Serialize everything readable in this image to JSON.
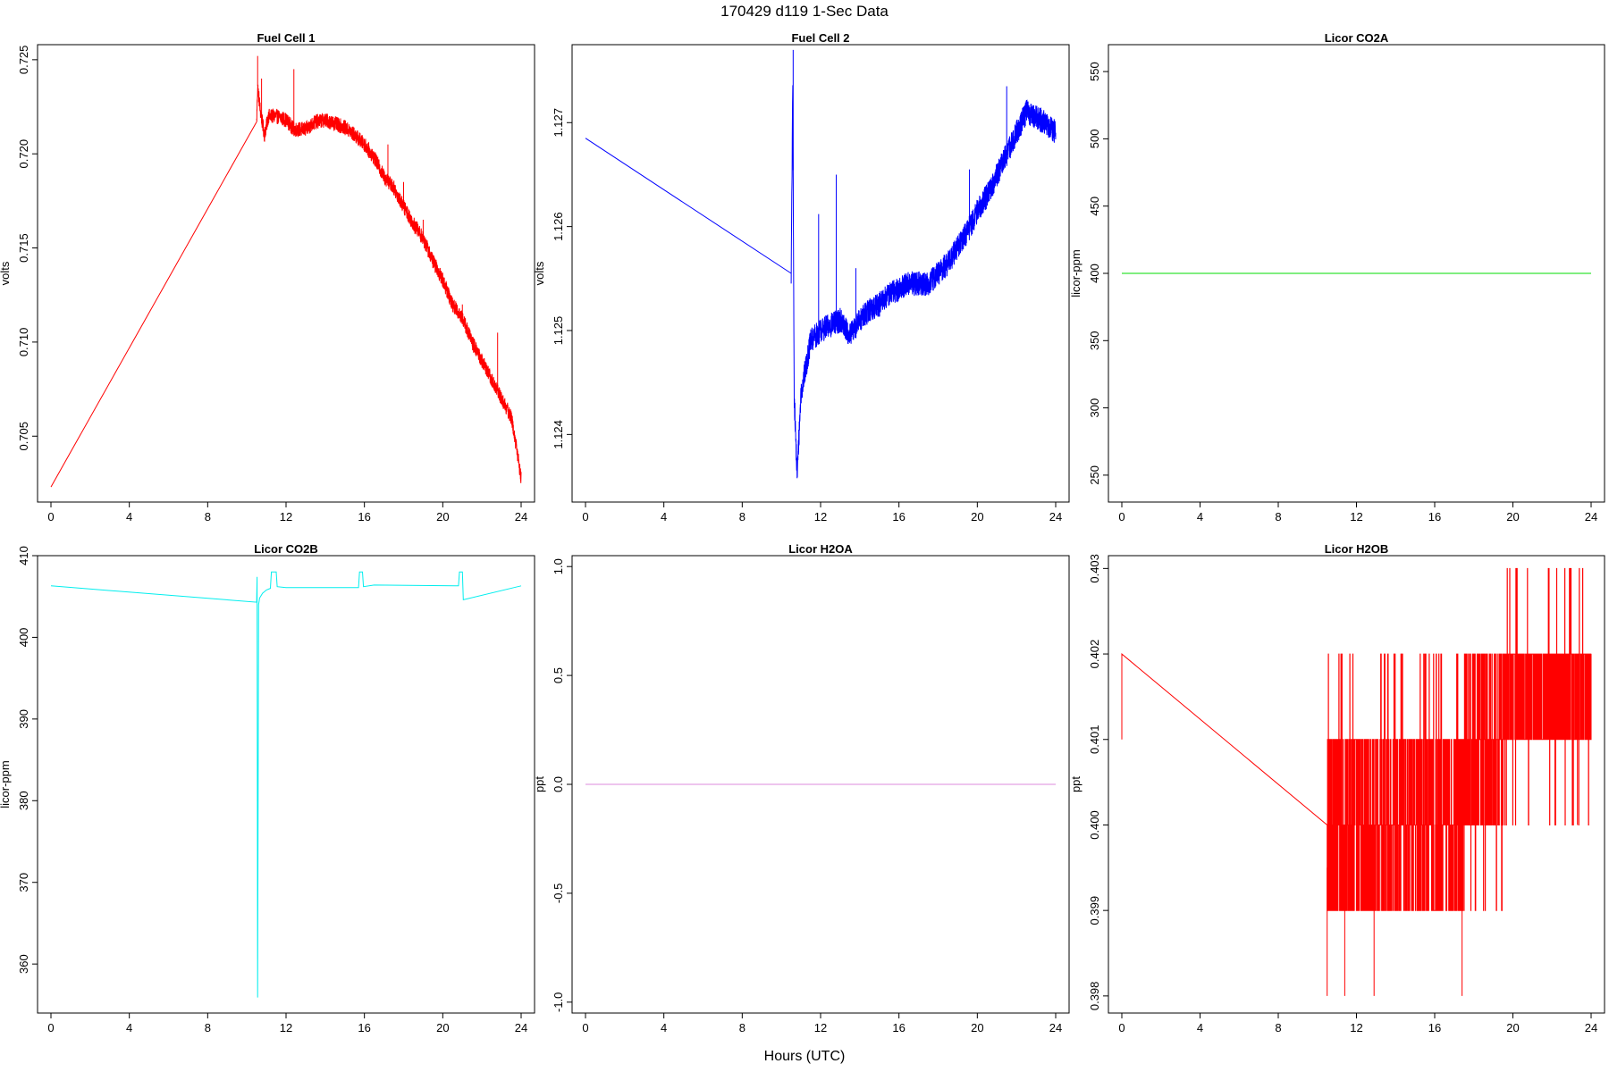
{
  "figure": {
    "title": "170429   d119   1-Sec Data",
    "xlabel": "Hours (UTC)"
  },
  "chart_data": [
    {
      "type": "line",
      "title": "Fuel Cell 1",
      "ylabel": "volts",
      "xlim": [
        0,
        24
      ],
      "ylim": [
        0.7015,
        0.7258
      ],
      "xticks": [
        0,
        4,
        8,
        12,
        16,
        20,
        24
      ],
      "yticks": [
        0.705,
        0.71,
        0.715,
        0.72,
        0.725
      ],
      "ytick_labels": [
        "0.705",
        "0.710",
        "0.715",
        "0.720",
        "0.725"
      ],
      "color": "#ff0000",
      "noise": 0.0004,
      "spikes": [
        [
          10.55,
          0.7252
        ],
        [
          10.75,
          0.724
        ],
        [
          12.4,
          0.7245
        ],
        [
          16.4,
          0.72
        ],
        [
          17.2,
          0.7205
        ],
        [
          18.0,
          0.7185
        ],
        [
          19.0,
          0.7165
        ],
        [
          21.0,
          0.712
        ],
        [
          22.8,
          0.7105
        ]
      ],
      "x": [
        0,
        10.5,
        10.55,
        10.7,
        10.9,
        11.1,
        11.5,
        12.0,
        12.4,
        13.0,
        13.5,
        14.0,
        14.5,
        15.0,
        15.5,
        16.0,
        16.5,
        17.0,
        17.5,
        18.0,
        18.5,
        19.0,
        19.5,
        20.0,
        20.5,
        21.0,
        21.5,
        22.0,
        22.5,
        23.0,
        23.5,
        23.7,
        24.0
      ],
      "y": [
        0.7023,
        0.7217,
        0.7236,
        0.7222,
        0.721,
        0.722,
        0.722,
        0.7218,
        0.7213,
        0.7213,
        0.7217,
        0.7218,
        0.7216,
        0.7214,
        0.721,
        0.7205,
        0.7198,
        0.7188,
        0.7182,
        0.7172,
        0.7163,
        0.7155,
        0.7143,
        0.7133,
        0.712,
        0.7113,
        0.71,
        0.709,
        0.708,
        0.707,
        0.706,
        0.7048,
        0.7028
      ]
    },
    {
      "type": "line",
      "title": "Fuel Cell 2",
      "ylabel": "volts",
      "xlim": [
        0,
        24
      ],
      "ylim": [
        1.12335,
        1.12775
      ],
      "xticks": [
        0,
        4,
        8,
        12,
        16,
        20,
        24
      ],
      "yticks": [
        1.124,
        1.125,
        1.126,
        1.127
      ],
      "ytick_labels": [
        "1.124",
        "1.125",
        "1.126",
        "1.127"
      ],
      "color": "#0000ff",
      "noise": 0.00012,
      "spikes": [
        [
          10.6,
          1.1277
        ],
        [
          11.9,
          1.12612
        ],
        [
          12.8,
          1.1265
        ],
        [
          13.8,
          1.1256
        ],
        [
          19.6,
          1.12655
        ],
        [
          21.5,
          1.12735
        ]
      ],
      "x": [
        0,
        10.5,
        10.58,
        10.65,
        10.8,
        11.0,
        11.5,
        12.0,
        12.5,
        13.0,
        13.5,
        14.0,
        14.5,
        15.0,
        15.5,
        16.0,
        16.5,
        17.0,
        17.5,
        18.0,
        18.5,
        19.0,
        19.5,
        20.0,
        20.5,
        21.0,
        21.5,
        22.0,
        22.5,
        23.0,
        23.5,
        24.0
      ],
      "y": [
        1.12685,
        1.12555,
        1.1274,
        1.1244,
        1.1236,
        1.1244,
        1.1249,
        1.125,
        1.12505,
        1.1251,
        1.12495,
        1.1251,
        1.1252,
        1.12525,
        1.12535,
        1.1254,
        1.12545,
        1.12545,
        1.12545,
        1.12555,
        1.12565,
        1.1258,
        1.12595,
        1.12615,
        1.1263,
        1.1265,
        1.1267,
        1.1269,
        1.1271,
        1.12705,
        1.127,
        1.1269
      ]
    },
    {
      "type": "line",
      "title": "Licor CO2A",
      "ylabel": "licor-ppm",
      "xlim": [
        0,
        24
      ],
      "ylim": [
        230,
        570
      ],
      "xticks": [
        0,
        4,
        8,
        12,
        16,
        20,
        24
      ],
      "yticks": [
        250,
        300,
        350,
        400,
        450,
        500,
        550
      ],
      "ytick_labels": [
        "250",
        "300",
        "350",
        "400",
        "450",
        "500",
        "550"
      ],
      "color": "#00dd00",
      "x": [
        0,
        24
      ],
      "y": [
        400,
        400
      ]
    },
    {
      "type": "line",
      "title": "Licor CO2B",
      "ylabel": "licor-ppm",
      "xlim": [
        0,
        24
      ],
      "ylim": [
        354,
        410
      ],
      "xticks": [
        0,
        4,
        8,
        12,
        16,
        20,
        24
      ],
      "yticks": [
        360,
        370,
        380,
        390,
        400,
        410
      ],
      "ytick_labels": [
        "360",
        "370",
        "380",
        "390",
        "400",
        "410"
      ],
      "color": "#00eeee",
      "x": [
        0,
        10.5,
        10.52,
        10.55,
        10.6,
        10.65,
        10.8,
        11.0,
        11.2,
        11.25,
        11.5,
        11.55,
        12.0,
        15.7,
        15.75,
        15.9,
        15.95,
        16.5,
        20.8,
        20.85,
        21.0,
        21.05,
        24.0
      ],
      "y": [
        406.3,
        404.3,
        407.4,
        355.9,
        404.0,
        404.8,
        405.4,
        405.8,
        406.0,
        408.0,
        408.0,
        406.2,
        406.1,
        406.1,
        408.0,
        408.0,
        406.2,
        406.4,
        406.3,
        408.0,
        408.0,
        404.6,
        406.3
      ]
    },
    {
      "type": "line",
      "title": "Licor H2OA",
      "ylabel": "ppt",
      "xlim": [
        0,
        24
      ],
      "ylim": [
        -1.05,
        1.05
      ],
      "xticks": [
        0,
        4,
        8,
        12,
        16,
        20,
        24
      ],
      "yticks": [
        -1.0,
        -0.5,
        0.0,
        0.5,
        1.0
      ],
      "ytick_labels": [
        "-1.0",
        "-0.5",
        "0.0",
        "0.5",
        "1.0"
      ],
      "color": "#dd88dd",
      "x": [
        0,
        24
      ],
      "y": [
        0,
        0
      ]
    },
    {
      "type": "line",
      "title": "Licor H2OB",
      "ylabel": "ppt",
      "xlim": [
        0,
        24
      ],
      "ylim": [
        0.3978,
        0.40315
      ],
      "xticks": [
        0,
        4,
        8,
        12,
        16,
        20,
        24
      ],
      "yticks": [
        0.398,
        0.399,
        0.4,
        0.401,
        0.402,
        0.403
      ],
      "ytick_labels": [
        "0.398",
        "0.399",
        "0.400",
        "0.401",
        "0.402",
        "0.403"
      ],
      "color": "#ff0000",
      "x": [
        0,
        0,
        10.5
      ],
      "y": [
        0.401,
        0.402,
        0.4
      ],
      "quantized": {
        "x_start": 10.5,
        "x_end": 24,
        "levels": [
          {
            "x_from": 10.5,
            "x_to": 17.5,
            "values": [
              0.399,
              0.4,
              0.401
            ],
            "extra": [
              0.402
            ]
          },
          {
            "x_from": 17.5,
            "x_to": 19.5,
            "values": [
              0.4,
              0.401,
              0.402
            ],
            "extra": [
              0.399
            ]
          },
          {
            "x_from": 19.5,
            "x_to": 24.0,
            "values": [
              0.401,
              0.402
            ],
            "extra": [
              0.403,
              0.4
            ]
          }
        ],
        "outliers": [
          [
            10.5,
            0.398
          ],
          [
            11.4,
            0.398
          ],
          [
            12.9,
            0.398
          ],
          [
            17.4,
            0.398
          ],
          [
            23.3,
            0.4
          ]
        ]
      }
    }
  ]
}
